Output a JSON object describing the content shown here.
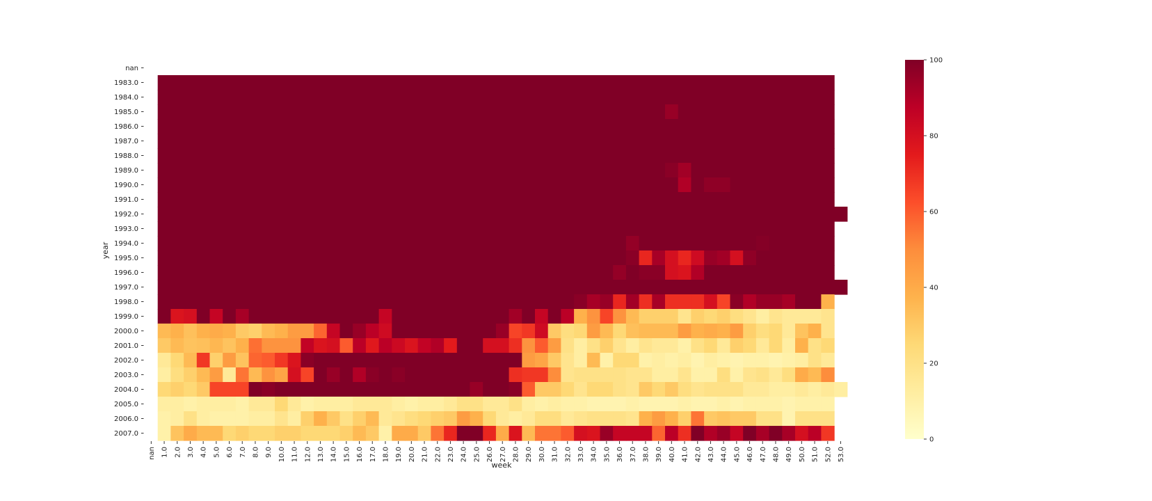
{
  "chart_data": {
    "type": "heatmap",
    "xlabel": "week",
    "ylabel": "year",
    "x_tick_labels": [
      "nan",
      "1.0",
      "2.0",
      "3.0",
      "4.0",
      "5.0",
      "6.0",
      "7.0",
      "8.0",
      "9.0",
      "10.0",
      "11.0",
      "12.0",
      "13.0",
      "14.0",
      "15.0",
      "16.0",
      "17.0",
      "18.0",
      "19.0",
      "20.0",
      "21.0",
      "22.0",
      "23.0",
      "24.0",
      "25.0",
      "26.0",
      "27.0",
      "28.0",
      "29.0",
      "30.0",
      "31.0",
      "32.0",
      "33.0",
      "34.0",
      "35.0",
      "36.0",
      "37.0",
      "38.0",
      "39.0",
      "40.0",
      "41.0",
      "42.0",
      "43.0",
      "44.0",
      "45.0",
      "46.0",
      "47.0",
      "48.0",
      "49.0",
      "50.0",
      "51.0",
      "52.0",
      "53.0"
    ],
    "y_tick_labels": [
      "nan",
      "1983.0",
      "1984.0",
      "1985.0",
      "1986.0",
      "1987.0",
      "1988.0",
      "1989.0",
      "1990.0",
      "1991.0",
      "1992.0",
      "1993.0",
      "1994.0",
      "1995.0",
      "1996.0",
      "1997.0",
      "1998.0",
      "1999.0",
      "2000.0",
      "2001.0",
      "2002.0",
      "2003.0",
      "2004.0",
      "2005.0",
      "2006.0",
      "2007.0"
    ],
    "colorbar": {
      "min": 0,
      "max": 100,
      "ticks": [
        "0",
        "20",
        "40",
        "60",
        "80",
        "100"
      ],
      "colormap": "YlOrRd"
    },
    "colormap_stops": [
      "#ffffcc",
      "#ffeda0",
      "#fed976",
      "#feb24c",
      "#fd8d3c",
      "#fc4e2a",
      "#e31a1c",
      "#bd0026",
      "#800026"
    ],
    "values": {
      "1983.0": [
        null,
        100,
        100,
        100,
        100,
        100,
        100,
        100,
        100,
        100,
        100,
        100,
        100,
        100,
        100,
        100,
        100,
        100,
        100,
        100,
        100,
        100,
        100,
        100,
        100,
        100,
        100,
        100,
        100,
        100,
        100,
        100,
        100,
        100,
        100,
        100,
        100,
        100,
        100,
        100,
        100,
        100,
        100,
        100,
        100,
        100,
        100,
        100,
        100,
        100,
        100,
        100,
        100,
        null
      ],
      "1984.0": [
        null,
        100,
        100,
        100,
        100,
        100,
        100,
        100,
        100,
        100,
        100,
        100,
        100,
        100,
        100,
        100,
        100,
        100,
        100,
        100,
        100,
        100,
        100,
        100,
        100,
        100,
        100,
        100,
        100,
        100,
        100,
        100,
        100,
        100,
        100,
        100,
        100,
        100,
        100,
        100,
        100,
        100,
        100,
        100,
        100,
        100,
        100,
        100,
        100,
        100,
        100,
        100,
        100,
        null
      ],
      "1985.0": [
        null,
        100,
        100,
        100,
        100,
        100,
        100,
        100,
        100,
        100,
        100,
        100,
        100,
        100,
        100,
        100,
        100,
        100,
        100,
        100,
        100,
        100,
        100,
        100,
        100,
        100,
        100,
        100,
        100,
        100,
        100,
        100,
        100,
        100,
        100,
        100,
        100,
        100,
        100,
        100,
        95,
        100,
        100,
        100,
        100,
        100,
        100,
        100,
        100,
        100,
        100,
        100,
        100,
        null
      ],
      "1986.0": [
        null,
        100,
        100,
        100,
        100,
        100,
        100,
        100,
        100,
        100,
        100,
        100,
        100,
        100,
        100,
        100,
        100,
        100,
        100,
        100,
        100,
        100,
        100,
        100,
        100,
        100,
        100,
        100,
        100,
        100,
        100,
        100,
        100,
        100,
        100,
        100,
        100,
        100,
        100,
        100,
        100,
        100,
        100,
        100,
        100,
        100,
        100,
        100,
        100,
        100,
        100,
        100,
        100,
        null
      ],
      "1987.0": [
        null,
        100,
        100,
        100,
        100,
        100,
        100,
        100,
        100,
        100,
        100,
        100,
        100,
        100,
        100,
        100,
        100,
        100,
        100,
        100,
        100,
        100,
        100,
        100,
        100,
        100,
        100,
        100,
        100,
        100,
        100,
        100,
        100,
        100,
        100,
        100,
        100,
        100,
        100,
        100,
        100,
        100,
        100,
        100,
        100,
        100,
        100,
        100,
        100,
        100,
        100,
        100,
        100,
        null
      ],
      "1988.0": [
        null,
        100,
        100,
        100,
        100,
        100,
        100,
        100,
        100,
        100,
        100,
        100,
        100,
        100,
        100,
        100,
        100,
        100,
        100,
        100,
        100,
        100,
        100,
        100,
        100,
        100,
        100,
        100,
        100,
        100,
        100,
        100,
        100,
        100,
        100,
        100,
        100,
        100,
        100,
        100,
        100,
        100,
        100,
        100,
        100,
        100,
        100,
        100,
        100,
        100,
        100,
        100,
        100,
        null
      ],
      "1989.0": [
        null,
        100,
        100,
        100,
        100,
        100,
        100,
        100,
        100,
        100,
        100,
        100,
        100,
        100,
        100,
        100,
        100,
        100,
        100,
        100,
        100,
        100,
        100,
        100,
        100,
        100,
        100,
        100,
        100,
        100,
        100,
        100,
        100,
        100,
        100,
        100,
        100,
        100,
        100,
        100,
        98,
        93,
        100,
        100,
        100,
        100,
        100,
        100,
        100,
        100,
        100,
        100,
        100,
        null
      ],
      "1990.0": [
        null,
        100,
        100,
        100,
        100,
        100,
        100,
        100,
        100,
        100,
        100,
        100,
        100,
        100,
        100,
        100,
        100,
        100,
        100,
        100,
        100,
        100,
        100,
        100,
        100,
        100,
        100,
        100,
        100,
        100,
        100,
        100,
        100,
        100,
        100,
        100,
        100,
        100,
        100,
        100,
        100,
        90,
        100,
        97,
        97,
        100,
        100,
        100,
        100,
        100,
        100,
        100,
        100,
        null
      ],
      "1991.0": [
        null,
        100,
        100,
        100,
        100,
        100,
        100,
        100,
        100,
        100,
        100,
        100,
        100,
        100,
        100,
        100,
        100,
        100,
        100,
        100,
        100,
        100,
        100,
        100,
        100,
        100,
        100,
        100,
        100,
        100,
        100,
        100,
        100,
        100,
        100,
        100,
        100,
        100,
        100,
        100,
        100,
        100,
        100,
        100,
        100,
        100,
        100,
        100,
        100,
        100,
        100,
        100,
        100,
        null
      ],
      "1992.0": [
        null,
        100,
        100,
        100,
        100,
        100,
        100,
        100,
        100,
        100,
        100,
        100,
        100,
        100,
        100,
        100,
        100,
        100,
        100,
        100,
        100,
        100,
        100,
        100,
        100,
        100,
        100,
        100,
        100,
        100,
        100,
        100,
        100,
        100,
        100,
        100,
        100,
        100,
        100,
        100,
        100,
        100,
        100,
        100,
        100,
        100,
        100,
        100,
        100,
        100,
        100,
        100,
        100,
        100
      ],
      "1993.0": [
        null,
        100,
        100,
        100,
        100,
        100,
        100,
        100,
        100,
        100,
        100,
        100,
        100,
        100,
        100,
        100,
        100,
        100,
        100,
        100,
        100,
        100,
        100,
        100,
        100,
        100,
        100,
        100,
        100,
        100,
        100,
        100,
        100,
        100,
        100,
        100,
        100,
        100,
        100,
        100,
        100,
        100,
        100,
        100,
        100,
        100,
        100,
        100,
        100,
        100,
        100,
        100,
        100,
        null
      ],
      "1994.0": [
        null,
        100,
        100,
        100,
        100,
        100,
        100,
        100,
        100,
        100,
        100,
        100,
        100,
        100,
        100,
        100,
        100,
        100,
        100,
        100,
        100,
        100,
        100,
        100,
        100,
        100,
        100,
        100,
        100,
        100,
        100,
        100,
        100,
        100,
        100,
        100,
        100,
        96,
        100,
        100,
        100,
        100,
        100,
        100,
        100,
        100,
        100,
        99,
        100,
        100,
        100,
        100,
        100,
        null
      ],
      "1995.0": [
        null,
        100,
        100,
        100,
        100,
        100,
        100,
        100,
        100,
        100,
        100,
        100,
        100,
        100,
        100,
        100,
        100,
        100,
        100,
        100,
        100,
        100,
        100,
        100,
        100,
        100,
        100,
        100,
        100,
        100,
        100,
        100,
        100,
        100,
        100,
        100,
        100,
        98,
        72,
        92,
        80,
        72,
        82,
        95,
        93,
        80,
        97,
        100,
        100,
        100,
        100,
        100,
        100,
        null
      ],
      "1996.0": [
        null,
        100,
        100,
        100,
        100,
        100,
        100,
        100,
        100,
        100,
        100,
        100,
        100,
        100,
        100,
        100,
        100,
        100,
        100,
        100,
        100,
        100,
        100,
        100,
        100,
        100,
        100,
        100,
        100,
        100,
        100,
        100,
        100,
        100,
        100,
        100,
        96,
        100,
        98,
        98,
        80,
        78,
        90,
        100,
        100,
        100,
        100,
        100,
        100,
        100,
        100,
        100,
        100,
        null
      ],
      "1997.0": [
        null,
        100,
        100,
        100,
        100,
        100,
        100,
        100,
        100,
        100,
        100,
        100,
        100,
        100,
        100,
        100,
        100,
        100,
        100,
        100,
        100,
        100,
        100,
        100,
        100,
        100,
        100,
        100,
        100,
        100,
        100,
        100,
        100,
        100,
        100,
        100,
        100,
        100,
        100,
        100,
        100,
        100,
        100,
        100,
        100,
        100,
        100,
        100,
        100,
        100,
        100,
        100,
        100,
        100
      ],
      "1998.0": [
        null,
        100,
        100,
        100,
        100,
        100,
        100,
        100,
        100,
        100,
        100,
        100,
        100,
        100,
        100,
        100,
        100,
        100,
        100,
        100,
        100,
        100,
        100,
        100,
        100,
        100,
        100,
        100,
        100,
        100,
        100,
        100,
        100,
        98,
        92,
        95,
        72,
        93,
        70,
        92,
        70,
        70,
        70,
        80,
        65,
        98,
        90,
        95,
        95,
        92,
        100,
        100,
        38,
        null
      ],
      "1999.0": [
        null,
        100,
        78,
        80,
        100,
        85,
        100,
        92,
        100,
        100,
        100,
        100,
        100,
        100,
        100,
        100,
        100,
        100,
        85,
        100,
        100,
        100,
        100,
        100,
        100,
        100,
        100,
        100,
        93,
        100,
        85,
        100,
        88,
        38,
        48,
        65,
        48,
        35,
        28,
        28,
        28,
        18,
        28,
        25,
        28,
        22,
        18,
        12,
        18,
        15,
        15,
        15,
        18,
        null
      ],
      "2000.0": [
        null,
        35,
        38,
        33,
        38,
        40,
        38,
        30,
        28,
        35,
        38,
        45,
        45,
        58,
        85,
        100,
        95,
        88,
        82,
        100,
        100,
        100,
        100,
        100,
        100,
        100,
        100,
        95,
        65,
        68,
        82,
        30,
        22,
        25,
        45,
        35,
        25,
        33,
        35,
        35,
        35,
        45,
        38,
        40,
        38,
        45,
        28,
        22,
        25,
        15,
        32,
        38,
        18,
        null
      ],
      "2001.0": [
        null,
        30,
        35,
        32,
        33,
        36,
        32,
        38,
        56,
        48,
        48,
        48,
        86,
        78,
        80,
        60,
        88,
        76,
        88,
        83,
        78,
        86,
        90,
        75,
        100,
        100,
        80,
        80,
        70,
        48,
        60,
        45,
        20,
        12,
        20,
        28,
        18,
        12,
        18,
        15,
        15,
        10,
        20,
        25,
        15,
        28,
        25,
        15,
        25,
        12,
        38,
        20,
        25,
        null
      ],
      "2002.0": [
        null,
        15,
        25,
        35,
        68,
        28,
        45,
        32,
        58,
        60,
        68,
        78,
        98,
        100,
        100,
        100,
        100,
        100,
        100,
        100,
        100,
        100,
        100,
        100,
        100,
        100,
        100,
        100,
        100,
        45,
        42,
        30,
        18,
        12,
        35,
        10,
        25,
        25,
        10,
        12,
        10,
        12,
        8,
        12,
        10,
        8,
        10,
        10,
        8,
        10,
        12,
        20,
        15,
        null
      ],
      "2003.0": [
        null,
        12,
        22,
        28,
        35,
        45,
        15,
        55,
        35,
        48,
        42,
        80,
        65,
        100,
        95,
        100,
        90,
        98,
        100,
        98,
        100,
        100,
        100,
        100,
        100,
        100,
        100,
        100,
        70,
        68,
        68,
        50,
        18,
        20,
        20,
        20,
        20,
        18,
        18,
        12,
        12,
        18,
        10,
        10,
        22,
        10,
        18,
        20,
        15,
        22,
        40,
        35,
        50,
        null
      ],
      "2004.0": [
        null,
        25,
        28,
        25,
        30,
        65,
        65,
        65,
        100,
        98,
        100,
        100,
        100,
        100,
        100,
        100,
        100,
        100,
        100,
        100,
        100,
        100,
        100,
        100,
        100,
        95,
        100,
        100,
        98,
        60,
        30,
        30,
        25,
        18,
        25,
        25,
        20,
        18,
        30,
        25,
        30,
        22,
        18,
        20,
        20,
        20,
        15,
        15,
        12,
        12,
        15,
        12,
        15,
        12
      ],
      "2005.0": [
        null,
        12,
        12,
        10,
        12,
        12,
        12,
        10,
        15,
        15,
        25,
        15,
        10,
        12,
        12,
        12,
        15,
        15,
        15,
        12,
        10,
        12,
        12,
        15,
        20,
        20,
        15,
        15,
        20,
        12,
        10,
        12,
        10,
        10,
        8,
        8,
        8,
        10,
        8,
        8,
        8,
        10,
        8,
        8,
        10,
        8,
        10,
        10,
        10,
        8,
        10,
        10,
        10,
        null
      ],
      "2006.0": [
        null,
        10,
        12,
        20,
        12,
        10,
        10,
        10,
        12,
        12,
        18,
        12,
        28,
        38,
        30,
        20,
        28,
        35,
        15,
        18,
        22,
        25,
        28,
        30,
        45,
        38,
        25,
        15,
        12,
        15,
        22,
        22,
        15,
        18,
        20,
        20,
        20,
        18,
        38,
        45,
        38,
        28,
        55,
        30,
        32,
        30,
        30,
        20,
        20,
        8,
        20,
        20,
        20,
        null
      ],
      "2007.0": [
        null,
        10,
        32,
        40,
        35,
        35,
        25,
        28,
        25,
        25,
        28,
        28,
        25,
        25,
        25,
        28,
        35,
        30,
        10,
        40,
        40,
        30,
        55,
        72,
        100,
        100,
        72,
        40,
        78,
        35,
        55,
        55,
        60,
        80,
        78,
        95,
        85,
        85,
        85,
        58,
        88,
        70,
        100,
        90,
        95,
        85,
        100,
        92,
        100,
        92,
        80,
        88,
        68,
        null
      ]
    }
  }
}
